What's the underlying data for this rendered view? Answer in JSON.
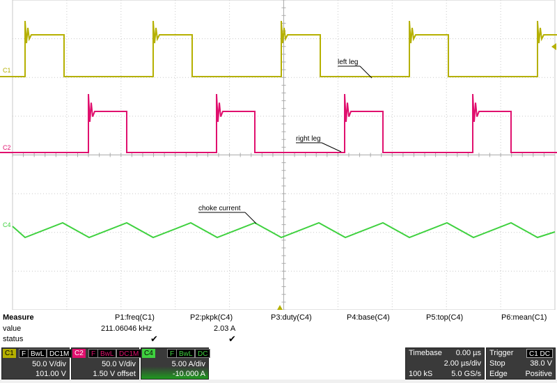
{
  "channels": [
    {
      "id": "C1",
      "color": "#b5b000",
      "label": "C1"
    },
    {
      "id": "C2",
      "color": "#e0106e",
      "label": "C2"
    },
    {
      "id": "C4",
      "color": "#3fd13f",
      "label": "C4"
    }
  ],
  "annotations": {
    "left_leg": "left leg",
    "right_leg": "right leg",
    "choke_current": "choke current"
  },
  "measure": {
    "header": "Measure",
    "row_value": "value",
    "row_status": "status",
    "params": [
      {
        "name": "P1:freq(C1)",
        "value": "211.06046 kHz",
        "status": "✔"
      },
      {
        "name": "P2:pkpk(C4)",
        "value": "2.03 A",
        "status": "✔"
      },
      {
        "name": "P3:duty(C4)",
        "value": "",
        "status": ""
      },
      {
        "name": "P4:base(C4)",
        "value": "",
        "status": ""
      },
      {
        "name": "P5:top(C4)",
        "value": "",
        "status": ""
      },
      {
        "name": "P6:mean(C1)",
        "value": "",
        "status": ""
      }
    ]
  },
  "channel_panels": [
    {
      "id": "C1",
      "flags": [
        "F",
        "BwL",
        "DC1M"
      ],
      "scale": "50.0 V/div",
      "offset": "101.00 V",
      "color": "#b5b000"
    },
    {
      "id": "C2",
      "flags": [
        "F",
        "BwL",
        "DC1M"
      ],
      "scale": "50.0 V/div",
      "offset": "1.50 V offset",
      "color": "#e0106e"
    },
    {
      "id": "C4",
      "flags": [
        "F",
        "BwL",
        "DC"
      ],
      "scale": "5.00 A/div",
      "offset": "-10.000 A",
      "color": "#3fd13f"
    }
  ],
  "timebase": {
    "label": "Timebase",
    "delay": "0.00 µs",
    "per_div": "2.00 µs/div",
    "samples": "100 kS",
    "rate": "5.0 GS/s"
  },
  "trigger": {
    "label": "Trigger",
    "source_tags": "C1 DC",
    "mode": "Stop",
    "level": "38.0 V",
    "type": "Edge",
    "slope": "Positive"
  }
}
